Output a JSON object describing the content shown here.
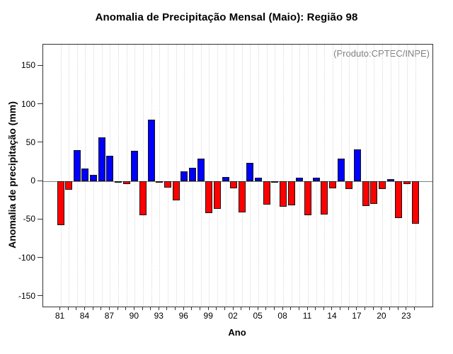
{
  "chart_data": {
    "type": "bar",
    "title": "Anomalia de Precipitação Mensal (Maio): Região 98",
    "xlabel": "Ano",
    "ylabel": "Anomalia de precipitação (mm)",
    "annotation": "(Produto:CPTEC/INPE)",
    "years": [
      1981,
      1982,
      1983,
      1984,
      1985,
      1986,
      1987,
      1988,
      1989,
      1990,
      1991,
      1992,
      1993,
      1994,
      1995,
      1996,
      1997,
      1998,
      1999,
      2000,
      2001,
      2002,
      2003,
      2004,
      2005,
      2006,
      2007,
      2008,
      2009,
      2010,
      2011,
      2012,
      2013,
      2014,
      2015,
      2016,
      2017,
      2018,
      2019,
      2020,
      2021,
      2022,
      2023,
      2024
    ],
    "values": [
      -57,
      -11,
      41,
      17,
      8,
      57,
      33,
      -2,
      -4,
      40,
      -44,
      80,
      -2,
      -8,
      -25,
      13,
      18,
      30,
      -41,
      -36,
      6,
      -9,
      -40,
      24,
      5,
      -30,
      -1,
      -33,
      -31,
      5,
      -44,
      5,
      -43,
      -9,
      30,
      -10,
      42,
      -32,
      -29,
      -10,
      3,
      -48,
      -4,
      -55
    ],
    "ylim": [
      -163,
      178
    ],
    "yticks": [
      150,
      100,
      50,
      0,
      -50,
      -100,
      -150
    ],
    "ytick_labels": [
      "150",
      "100",
      "50",
      "0",
      "-50",
      "-100",
      "-150"
    ],
    "xtick_labels": [
      "81",
      "84",
      "87",
      "90",
      "93",
      "96",
      "99",
      "02",
      "05",
      "08",
      "11",
      "14",
      "17",
      "20",
      "23"
    ],
    "xtick_every": 3,
    "grid": "vertical dotted line per year",
    "legend": null,
    "colors": {
      "positive_bar": "#0000ff",
      "negative_bar": "#ff0000",
      "bar_border": "#141414",
      "zero_line": "#808080",
      "gridline": "#d9d9d9",
      "frame": "#333333",
      "annotation_text": "#808080",
      "text": "#000000"
    }
  }
}
